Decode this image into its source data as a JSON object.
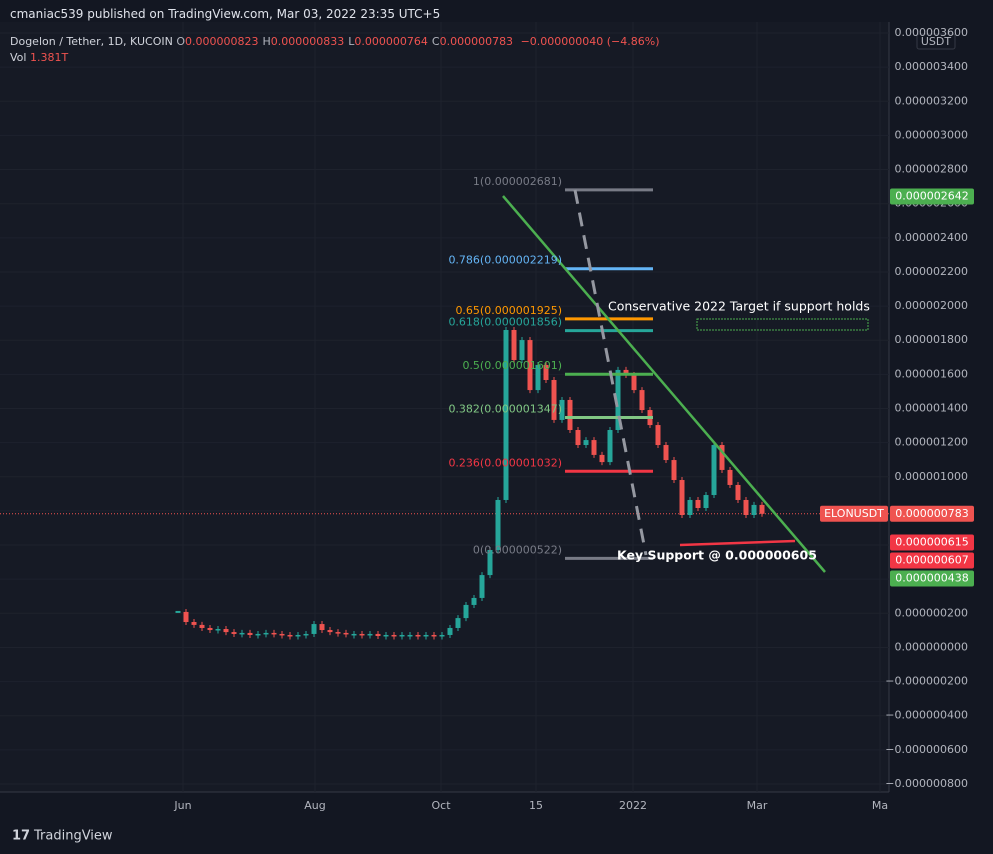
{
  "header": {
    "publisher": "cmaniac539 published on TradingView.com, Mar 03, 2022 23:35 UTC+5",
    "symbol": "Dogelon / Tether, 1D, KUCOIN",
    "ohlc": [
      {
        "key": "O",
        "value": "0.000000823"
      },
      {
        "key": "H",
        "value": "0.000000833"
      },
      {
        "key": "L",
        "value": "0.000000764"
      },
      {
        "key": "C",
        "value": "0.000000783"
      }
    ],
    "change": "−0.000000040 (−4.86%)",
    "vol_key": "Vol",
    "vol": "1.381T"
  },
  "chart_data": {
    "type": "candlestick",
    "currency": "USDT",
    "symbol_tag": "ELONUSDT",
    "up_color": "#26a69a",
    "down_color": "#ef5350",
    "values": [
      2.08e-07,
      1.49e-07,
      1.32e-07,
      1.14e-07,
      1.02e-07,
      1.08e-07,
      9e-08,
      7.9e-08,
      8.5e-08,
      7.3e-08,
      7.9e-08,
      8.5e-08,
      7.9e-08,
      7.3e-08,
      6.7e-08,
      7.3e-08,
      7.9e-08,
      1.37e-07,
      1.02e-07,
      9e-08,
      8.5e-08,
      7.9e-08,
      7.9e-08,
      7.3e-08,
      7.9e-08,
      6.7e-08,
      7.3e-08,
      6.7e-08,
      7.3e-08,
      7.3e-08,
      6.7e-08,
      7.3e-08,
      6.7e-08,
      7.3e-08,
      1.14e-07,
      1.72e-07,
      2.49e-07,
      2.9e-07,
      4.24e-07,
      5.71e-07,
      8.64e-07,
      1.86e-06,
      1.684e-06,
      1.801e-06,
      1.508e-06,
      1.655e-06,
      1.567e-06,
      1.333e-06,
      1.45e-06,
      1.274e-06,
      1.186e-06,
      1.215e-06,
      1.128e-06,
      1.086e-06,
      1.274e-06,
      1.626e-06,
      1.596e-06,
      1.508e-06,
      1.391e-06,
      1.303e-06,
      1.186e-06,
      1.098e-06,
      9.81e-07,
      7.76e-07,
      8.64e-07,
      8.17e-07,
      8.93e-07,
      1.186e-06,
      1.04e-06,
      9.52e-07,
      8.64e-07,
      7.76e-07,
      8.35e-07,
      7.83e-07
    ],
    "xtick_labels": [
      "Jun",
      "Aug",
      "Oct",
      "15",
      "2022",
      "Mar",
      "Ma"
    ],
    "ylim": [
      -8.47e-07,
      3.688e-06
    ],
    "yticks": [
      {
        "value": 3.6e-06,
        "label": "0.000003600"
      },
      {
        "value": 3.4e-06,
        "label": "0.000003400"
      },
      {
        "value": 3.2e-06,
        "label": "0.000003200"
      },
      {
        "value": 3e-06,
        "label": "0.000003000"
      },
      {
        "value": 2.8e-06,
        "label": "0.000002800"
      },
      {
        "value": 2.6e-06,
        "label": "0.000002600"
      },
      {
        "value": 2.4e-06,
        "label": "0.000002400"
      },
      {
        "value": 2.2e-06,
        "label": "0.000002200"
      },
      {
        "value": 2e-06,
        "label": "0.000002000"
      },
      {
        "value": 1.8e-06,
        "label": "0.000001800"
      },
      {
        "value": 1.6e-06,
        "label": "0.000001600"
      },
      {
        "value": 1.4e-06,
        "label": "0.000001400"
      },
      {
        "value": 1.2e-06,
        "label": "0.000001200"
      },
      {
        "value": 1e-06,
        "label": "0.000001000"
      },
      {
        "value": 8e-07,
        "label": "0.000000800"
      },
      {
        "value": 6e-07,
        "label": "0.000000600"
      },
      {
        "value": 4e-07,
        "label": "0.000000400"
      },
      {
        "value": 2e-07,
        "label": "0.000000200"
      },
      {
        "value": 0,
        "label": "0.000000000"
      },
      {
        "value": -2e-07,
        "label": "−0.000000200"
      },
      {
        "value": -4e-07,
        "label": "−0.000000400"
      },
      {
        "value": -6e-07,
        "label": "−0.000000600"
      },
      {
        "value": -8e-07,
        "label": "−0.000000800"
      }
    ],
    "last": {
      "value": 7.83e-07,
      "label": "0.000000783"
    },
    "price_tags": [
      {
        "value": 2.642e-06,
        "label": "0.000002642",
        "color": "#4caf50"
      },
      {
        "value": 7.83e-07,
        "label": "0.000000783",
        "color": "#ef5350"
      },
      {
        "value": 6.15e-07,
        "label": "0.000000615",
        "color": "#f23645"
      },
      {
        "value": 6.07e-07,
        "label": "0.000000607",
        "color": "#f23645"
      },
      {
        "value": 4.38e-07,
        "label": "0.000000438",
        "color": "#4caf50"
      }
    ],
    "fib": [
      {
        "level": 1,
        "price": 2.681e-06,
        "label": "1(0.000002681)",
        "color": "#787b86"
      },
      {
        "level": 0.786,
        "price": 2.219e-06,
        "label": "0.786(0.000002219)",
        "color": "#64b5f6"
      },
      {
        "level": 0.65,
        "price": 1.925e-06,
        "label": "0.65(0.000001925)",
        "color": "#ff9800"
      },
      {
        "level": 0.618,
        "price": 1.856e-06,
        "label": "0.618(0.000001856)",
        "color": "#26a69a"
      },
      {
        "level": 0.5,
        "price": 1.601e-06,
        "label": "0.5(0.000001601)",
        "color": "#4caf50"
      },
      {
        "level": 0.382,
        "price": 1.347e-06,
        "label": "0.382(0.000001347)",
        "color": "#81c784"
      },
      {
        "level": 0.236,
        "price": 1.032e-06,
        "label": "0.236(0.000001032)",
        "color": "#f23645"
      },
      {
        "level": 0,
        "price": 5.22e-07,
        "label": "0(0.000000522)",
        "color": "#787b86"
      }
    ],
    "annotations": [
      "Conservative 2022 Target if support holds",
      "Key Support @ 0.000000605"
    ]
  },
  "footer": "TradingView"
}
